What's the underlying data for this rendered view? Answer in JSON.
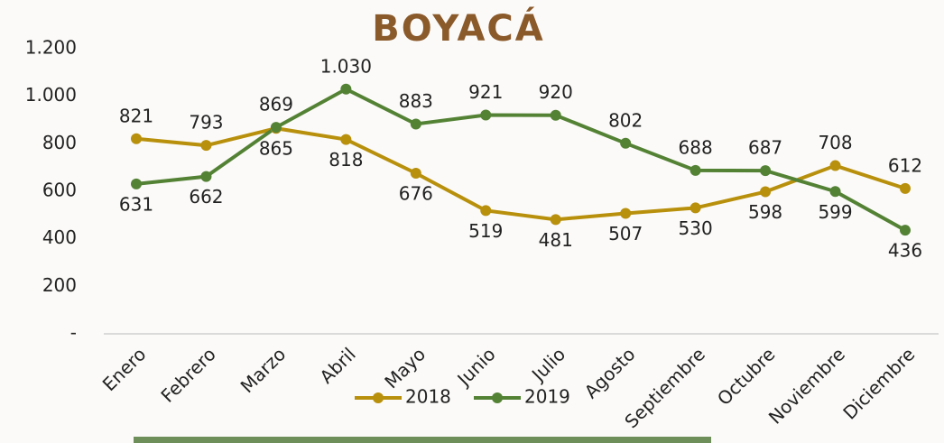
{
  "chart_data": {
    "type": "line",
    "title": "BOYACÁ",
    "categories": [
      "Enero",
      "Febrero",
      "Marzo",
      "Abril",
      "Mayo",
      "Junio",
      "Julio",
      "Agosto",
      "Septiembre",
      "Octubre",
      "Noviembre",
      "Diciembre"
    ],
    "series": [
      {
        "name": "2018",
        "color": "#b8900c",
        "values": [
          821,
          793,
          865,
          818,
          676,
          519,
          481,
          507,
          530,
          598,
          708,
          612
        ]
      },
      {
        "name": "2019",
        "color": "#548235",
        "values": [
          631,
          662,
          869,
          1030,
          883,
          921,
          920,
          802,
          688,
          687,
          599,
          436
        ],
        "value_labels": [
          "631",
          "662",
          "869",
          "1.030",
          "883",
          "921",
          "920",
          "802",
          "688",
          "687",
          "599",
          "436"
        ]
      }
    ],
    "ylim": [
      0,
      1200
    ],
    "yticks": [
      {
        "value": 0,
        "label": "-"
      },
      200,
      400,
      600,
      800,
      {
        "value": 1000,
        "label": "1.000"
      },
      {
        "value": 1200,
        "label": "1.200"
      }
    ],
    "legend": "bottom"
  }
}
